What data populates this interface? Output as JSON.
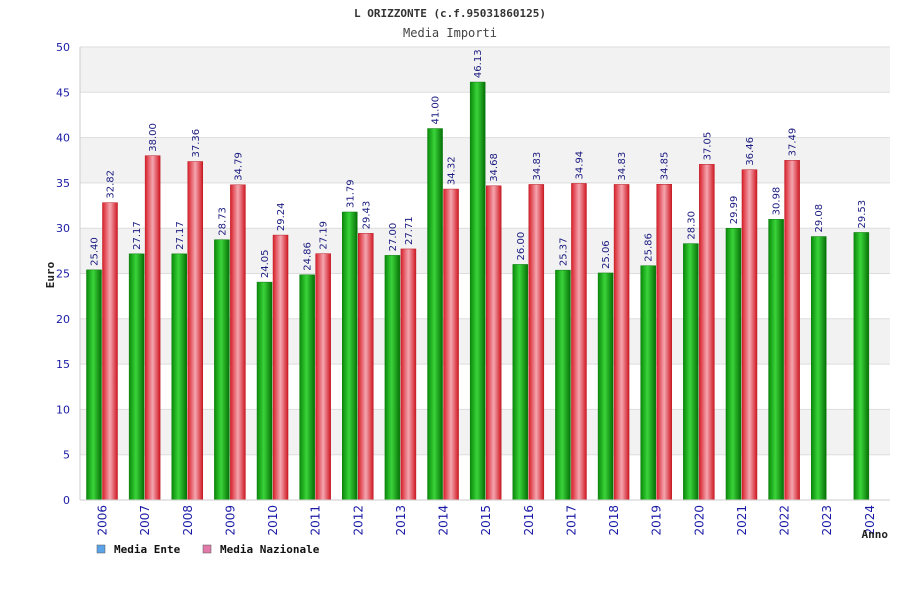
{
  "chart_data": {
    "type": "bar",
    "title": "L ORIZZONTE (c.f.95031860125)",
    "subtitle": "Media Importi",
    "ylabel": "Euro",
    "xlabel": "Anno",
    "ylim": [
      0,
      50
    ],
    "yticks": [
      0,
      5,
      10,
      15,
      20,
      25,
      30,
      35,
      40,
      45,
      50
    ],
    "grid": true,
    "legend_position": "bottom-left",
    "categories": [
      "2006",
      "2007",
      "2008",
      "2009",
      "2010",
      "2011",
      "2012",
      "2013",
      "2014",
      "2015",
      "2016",
      "2017",
      "2018",
      "2019",
      "2020",
      "2021",
      "2022",
      "2023",
      "2024"
    ],
    "series": [
      {
        "name": "Media Ente",
        "legend_color": "#5ba3e8",
        "bar_color": "#10b010",
        "values": [
          25.4,
          27.17,
          27.17,
          28.73,
          24.05,
          24.86,
          31.79,
          27.0,
          41.0,
          46.13,
          26.0,
          25.37,
          25.06,
          25.86,
          28.3,
          29.99,
          30.98,
          29.08,
          29.53
        ],
        "labels": [
          "25.40",
          "27.17",
          "27.17",
          "28.73",
          "24.05",
          "24.86",
          "31.79",
          "27.00",
          "41.00",
          "46.13",
          "26.00",
          "25.37",
          "25.06",
          "25.86",
          "28.30",
          "29.99",
          "30.98",
          "29.08",
          "29.53"
        ]
      },
      {
        "name": "Media Nazionale",
        "legend_color": "#e07aa8",
        "bar_color": "#e8303a",
        "values": [
          32.82,
          38.0,
          37.36,
          34.79,
          29.24,
          27.19,
          29.43,
          27.71,
          34.32,
          34.68,
          34.83,
          34.94,
          34.83,
          34.85,
          37.05,
          36.46,
          37.49,
          null,
          null
        ],
        "labels": [
          "32.82",
          "38.00",
          "37.36",
          "34.79",
          "29.24",
          "27.19",
          "29.43",
          "27.71",
          "34.32",
          "34.68",
          "34.83",
          "34.94",
          "34.83",
          "34.85",
          "37.05",
          "36.46",
          "37.49",
          null,
          null
        ]
      }
    ]
  }
}
